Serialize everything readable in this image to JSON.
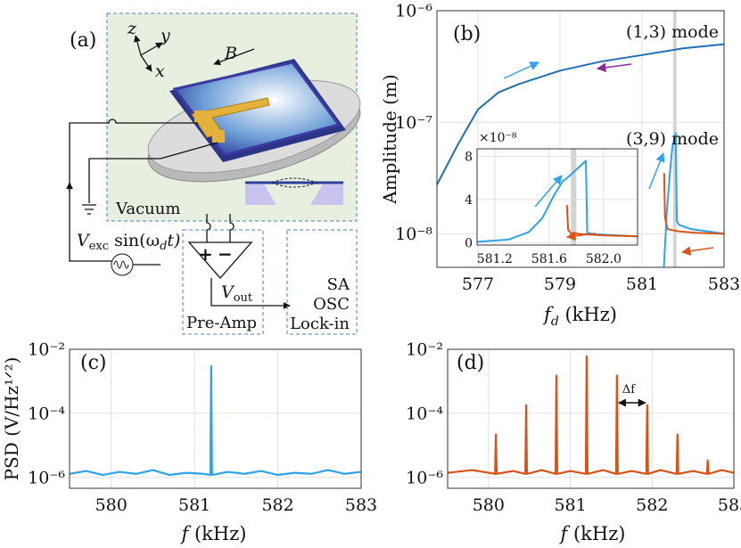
{
  "diagram": {
    "label": "(a)",
    "axes": [
      "z",
      "y",
      "x"
    ],
    "field": "B",
    "chamber": "Vacuum",
    "source": {
      "symbol": "V",
      "subscript": "exc",
      "function": " sin(ω",
      "function_subscript": "d",
      "function_end": "t)"
    },
    "amplifier_inputs": [
      "+",
      "−"
    ],
    "output": {
      "symbol": "V",
      "subscript": "out"
    },
    "amplifier": "Pre-Amp",
    "instruments": [
      "SA",
      "OSC",
      "Lock-in"
    ]
  },
  "chart_data": [
    {
      "type": "line",
      "label": "(b)",
      "xlabel": {
        "symbol": "f",
        "subscript": "d",
        "unit": " (kHz)"
      },
      "ylabel": "Amplitude (m)",
      "xlim": [
        576,
        583
      ],
      "xticks": [
        577,
        579,
        581,
        583
      ],
      "ylim": [
        5e-09,
        1e-06
      ],
      "yscale": "log",
      "yticks": [
        {
          "value": 1e-08,
          "label": "10⁻⁸"
        },
        {
          "value": 1e-07,
          "label": "10⁻⁷"
        },
        {
          "value": 1e-06,
          "label": "10⁻⁶"
        }
      ],
      "grid": true,
      "highlight": [
        581.76,
        581.84
      ],
      "annotations": [
        "(1,3) mode",
        "(3,9) mode"
      ],
      "series": [
        {
          "color": "#1f6fb4",
          "x": [
            576,
            576.5,
            577,
            577.5,
            578,
            579,
            580,
            581,
            582,
            583
          ],
          "values": [
            2.75e-08,
            6.2e-08,
            1.3e-07,
            1.85e-07,
            2.2e-07,
            2.9e-07,
            3.5e-07,
            4e-07,
            4.6e-07,
            5e-07
          ]
        },
        {
          "color": "#2fa3ea",
          "x": [
            581.52,
            581.6,
            581.68,
            581.74,
            581.8,
            581.82,
            581.85,
            581.9,
            582.2,
            582.6,
            583
          ],
          "values": [
            4e-09,
            1.5e-08,
            3.5e-08,
            6e-08,
            7.5e-08,
            8e-08,
            1.3e-08,
            1.2e-08,
            1.1e-08,
            1.05e-08,
            1e-08
          ]
        },
        {
          "color": "#d95319",
          "x": [
            581.54,
            581.56,
            581.62,
            581.9,
            582.3,
            583
          ],
          "values": [
            3.5e-08,
            1.4e-08,
            1.1e-08,
            1.05e-08,
            1.02e-08,
            1e-08
          ]
        }
      ]
    },
    {
      "type": "line",
      "multiplier": "×10⁻⁸",
      "xlim": [
        581.07,
        582.25
      ],
      "xticks": [
        581.2,
        581.6,
        {
          "value": 582,
          "label": "582.0"
        }
      ],
      "ylim": [
        -0.2,
        8.7
      ],
      "yticks": [
        0,
        4,
        8
      ],
      "grid": true,
      "highlight": [
        581.76,
        581.8
      ],
      "series": [
        {
          "color": "#2fa3ea",
          "x": [
            581.07,
            581.3,
            581.45,
            581.55,
            581.64,
            581.7,
            581.75,
            581.87,
            581.88,
            581.95,
            582.1,
            582.25
          ],
          "values": [
            0.1,
            0.3,
            1,
            2.3,
            4.5,
            5.7,
            6.2,
            7.6,
            0.9,
            0.8,
            0.7,
            0.6
          ]
        },
        {
          "color": "#d95319",
          "x": [
            581.73,
            581.74,
            581.76,
            581.85,
            582,
            582.25
          ],
          "values": [
            3.5,
            1.2,
            0.9,
            0.8,
            0.7,
            0.6
          ]
        }
      ]
    },
    {
      "type": "line",
      "label": "(c)",
      "xlabel": {
        "symbol": "f",
        "unit": " (kHz)"
      },
      "ylabel": "PSD (V/Hz¹ᐟ²)",
      "xlim": [
        579.5,
        583
      ],
      "xticks": [
        580,
        581,
        582,
        583
      ],
      "ylim": [
        4.6e-07,
        0.01
      ],
      "yscale": "log",
      "yticks": [
        {
          "value": 1e-06,
          "label": "10⁻⁶"
        },
        {
          "value": 0.0001,
          "label": "10⁻⁴"
        },
        {
          "value": 0.01,
          "label": "10⁻²"
        }
      ],
      "grid": true,
      "series": [
        {
          "color": "#2fa3ea",
          "x": [
            579.5,
            579.7,
            579.9,
            580.1,
            580.3,
            580.5,
            580.7,
            580.9,
            581.1,
            581.19,
            581.2,
            581.21,
            581.4,
            581.6,
            581.8,
            582.0,
            582.2,
            582.4,
            582.6,
            582.8,
            583
          ],
          "values": [
            1.3e-06,
            1.6e-06,
            1.2e-06,
            1.5e-06,
            1.3e-06,
            1.7e-06,
            1.2e-06,
            1.4e-06,
            1.3e-06,
            1.2e-06,
            0.003,
            1.2e-06,
            1.5e-06,
            1.3e-06,
            1.6e-06,
            1.2e-06,
            1.4e-06,
            1.3e-06,
            1.7e-06,
            1.3e-06,
            1.5e-06
          ]
        }
      ]
    },
    {
      "type": "line",
      "label": "(d)",
      "xlabel": {
        "symbol": "f",
        "unit": " (kHz)"
      },
      "xlim": [
        579.5,
        583
      ],
      "xticks": [
        580,
        581,
        582,
        583
      ],
      "ylim": [
        4.6e-07,
        0.01
      ],
      "yscale": "log",
      "yticks": [
        {
          "value": 1e-06,
          "label": "10⁻⁶"
        },
        {
          "value": 0.0001,
          "label": "10⁻⁴"
        },
        {
          "value": 0.01,
          "label": "10⁻²"
        }
      ],
      "grid": true,
      "annotations": [
        "Δf"
      ],
      "delta_f": [
        581.57,
        581.94
      ],
      "series": [
        {
          "color": "#d95319",
          "x": [
            579.5,
            579.8,
            580.08,
            580.09,
            580.1,
            580.3,
            580.45,
            580.46,
            580.47,
            580.65,
            580.82,
            580.83,
            580.84,
            581.0,
            581.19,
            581.2,
            581.21,
            581.4,
            581.56,
            581.57,
            581.58,
            581.75,
            581.93,
            581.94,
            581.95,
            582.1,
            582.3,
            582.31,
            582.32,
            582.5,
            582.67,
            582.68,
            582.69,
            582.85,
            583
          ],
          "values": [
            1.4e-06,
            1.7e-06,
            1.3e-06,
            2.2e-05,
            1.3e-06,
            1.6e-06,
            1.3e-06,
            0.00018,
            1.3e-06,
            1.7e-06,
            1.3e-06,
            0.0015,
            1.3e-06,
            1.6e-06,
            1.3e-06,
            0.006,
            1.3e-06,
            1.7e-06,
            1.3e-06,
            0.0015,
            1.3e-06,
            1.6e-06,
            1.3e-06,
            0.00018,
            1.3e-06,
            1.7e-06,
            1.3e-06,
            2.2e-05,
            1.3e-06,
            1.6e-06,
            1.3e-06,
            3.4e-06,
            1.3e-06,
            1.7e-06,
            1.4e-06
          ]
        }
      ]
    }
  ]
}
